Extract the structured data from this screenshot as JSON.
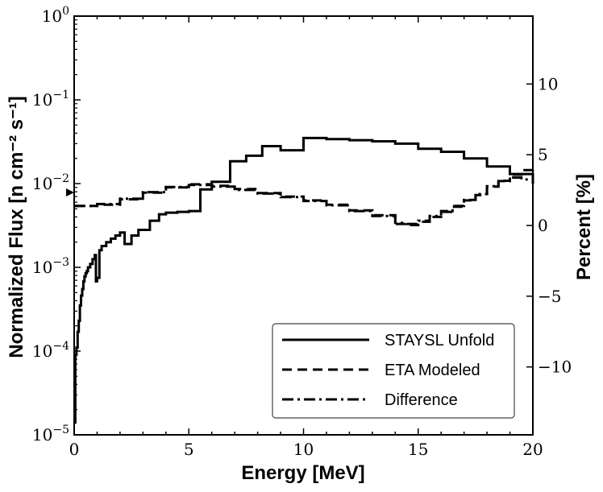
{
  "chart_data": {
    "type": "line",
    "xlabel": "Energy [MeV]",
    "ylabel_left": "Normalized Flux [n cm⁻² s⁻¹]",
    "ylabel_right": "Percent [%]",
    "xlim": [
      0,
      20
    ],
    "ylim_left": [
      1e-05,
      1
    ],
    "ylim_right": [
      -14.8,
      14.8
    ],
    "left_scale": "log",
    "x_ticks": [
      "0",
      "5",
      "10",
      "15",
      "20"
    ],
    "y_left_ticks": [
      {
        "mant": "10",
        "exp": "0"
      },
      {
        "mant": "10",
        "exp": "−1"
      },
      {
        "mant": "10",
        "exp": "−2"
      },
      {
        "mant": "10",
        "exp": "−3"
      },
      {
        "mant": "10",
        "exp": "−4"
      },
      {
        "mant": "10",
        "exp": "−5"
      }
    ],
    "y_right_ticks": [
      "10",
      "5",
      "0",
      "−5",
      "−10"
    ],
    "legend_position": "lower-right",
    "grid": false,
    "series": [
      {
        "name": "STAYSL Unfold",
        "axis": "left",
        "style": "solid",
        "x": [
          0.0,
          0.05,
          0.1,
          0.15,
          0.2,
          0.25,
          0.3,
          0.35,
          0.4,
          0.45,
          0.5,
          0.55,
          0.6,
          0.7,
          0.8,
          0.9,
          0.95,
          1.0,
          1.1,
          1.2,
          1.4,
          1.6,
          1.8,
          2.0,
          2.2,
          2.5,
          2.8,
          3.3,
          3.7,
          4.0,
          4.5,
          5.0,
          5.5,
          6.0,
          6.8,
          7.5,
          8.2,
          9.0,
          10.0,
          11.0,
          12.0,
          13.0,
          14.0,
          15.0,
          16.0,
          17.0,
          18.0,
          19.0,
          20.0
        ],
        "y": [
          1.4e-05,
          9e-05,
          0.00011,
          0.00017,
          0.00023,
          0.00035,
          0.00046,
          0.00055,
          0.00068,
          0.00078,
          0.00085,
          0.0009,
          0.001,
          0.0011,
          0.00125,
          0.0014,
          0.00068,
          0.00075,
          0.0016,
          0.0018,
          0.002,
          0.0022,
          0.0024,
          0.0026,
          0.0019,
          0.0024,
          0.0028,
          0.0036,
          0.0043,
          0.0045,
          0.0046,
          0.0047,
          0.0085,
          0.0105,
          0.0185,
          0.0215,
          0.028,
          0.025,
          0.035,
          0.034,
          0.033,
          0.032,
          0.03,
          0.026,
          0.024,
          0.02,
          0.016,
          0.013,
          0.01
        ]
      },
      {
        "name": "ETA Modeled",
        "axis": "left",
        "style": "dashed",
        "x": [
          0.0,
          1.0,
          2.0,
          3.0,
          4.0,
          5.0,
          6.0,
          7.0,
          8.0,
          9.0,
          10.0,
          11.0,
          12.0,
          13.0,
          14.0,
          14.5,
          15.0,
          15.5,
          16.0,
          16.5,
          17.0,
          17.5,
          18.0,
          18.5,
          19.0,
          19.5,
          20.0
        ],
        "y": [
          0.0054,
          0.0056,
          0.0065,
          0.0078,
          0.009,
          0.0098,
          0.0094,
          0.0086,
          0.0077,
          0.007,
          0.0063,
          0.0056,
          0.0048,
          0.0042,
          0.0033,
          0.0032,
          0.0035,
          0.004,
          0.0046,
          0.0053,
          0.0063,
          0.0073,
          0.0092,
          0.0108,
          0.0128,
          0.0145,
          0.0155
        ]
      },
      {
        "name": "Difference",
        "axis": "left",
        "style": "dashdot",
        "x": [
          0.0,
          1.0,
          2.0,
          3.0,
          4.0,
          5.0,
          6.0,
          7.0,
          8.0,
          9.0,
          10.0,
          11.0,
          12.0,
          13.0,
          14.0,
          14.5,
          15.0,
          15.5,
          16.0,
          16.5,
          17.0,
          17.5,
          18.0,
          18.5,
          19.0,
          19.5,
          20.0
        ],
        "y": [
          0.0054,
          0.0057,
          0.0066,
          0.0079,
          0.0091,
          0.0096,
          0.0092,
          0.0084,
          0.0076,
          0.0069,
          0.0062,
          0.0055,
          0.0047,
          0.0041,
          0.0034,
          0.0033,
          0.0036,
          0.0041,
          0.0047,
          0.0054,
          0.0064,
          0.0075,
          0.0093,
          0.0107,
          0.0118,
          0.0112,
          0.0105
        ]
      }
    ]
  }
}
